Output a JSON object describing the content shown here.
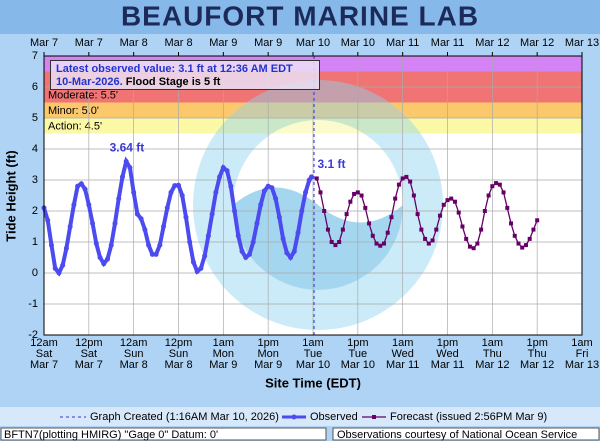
{
  "chart_data": {
    "type": "line",
    "title": "BEAUFORT MARINE LAB",
    "ylabel": "Tide Height (ft)",
    "xlabel": "Site Time (EDT)",
    "xlim": [
      0,
      144
    ],
    "ylim": [
      -2,
      7
    ],
    "yticks": [
      -2,
      -1,
      0,
      1,
      2,
      3,
      4,
      5,
      6,
      7
    ],
    "grid": true,
    "xticks": [
      {
        "value": 0,
        "label": "12am\nSat\nMar 7"
      },
      {
        "value": 12,
        "label": "12pm\nSat\nMar 7"
      },
      {
        "value": 24,
        "label": "12am\nSun\nMar 8"
      },
      {
        "value": 36,
        "label": "12pm\nSun\nMar 8"
      },
      {
        "value": 48,
        "label": "1am\nMon\nMar 9"
      },
      {
        "value": 60,
        "label": "1pm\nMon\nMar 9"
      },
      {
        "value": 72,
        "label": "1am\nTue\nMar 10"
      },
      {
        "value": 84,
        "label": "1pm\nTue\nMar 10"
      },
      {
        "value": 96,
        "label": "1am\nWed\nMar 11"
      },
      {
        "value": 108,
        "label": "1pm\nWed\nMar 11"
      },
      {
        "value": 120,
        "label": "1am\nThu\nMar 12"
      },
      {
        "value": 132,
        "label": "1pm\nThu\nMar 12"
      },
      {
        "value": 144,
        "label": "1am\nFri\nMar 13"
      }
    ],
    "x2ticks": [
      {
        "value": 0,
        "label": "Mar 7"
      },
      {
        "value": 12,
        "label": "Mar 7"
      },
      {
        "value": 24,
        "label": "Mar 8"
      },
      {
        "value": 36,
        "label": "Mar 8"
      },
      {
        "value": 48,
        "label": "Mar 9"
      },
      {
        "value": 60,
        "label": "Mar 9"
      },
      {
        "value": 72,
        "label": "Mar 10"
      },
      {
        "value": 84,
        "label": "Mar 10"
      },
      {
        "value": 96,
        "label": "Mar 11"
      },
      {
        "value": 108,
        "label": "Mar 11"
      },
      {
        "value": 120,
        "label": "Mar 12"
      },
      {
        "value": 132,
        "label": "Mar 12"
      },
      {
        "value": 144,
        "label": "Mar 13"
      }
    ],
    "flood_levels": [
      {
        "value": 4.5,
        "label": "Action: 4.5'",
        "color": "#fbf8a6"
      },
      {
        "value": 5,
        "label": "Minor: 5.0'",
        "color": "#fcc86c"
      },
      {
        "value": 5.5,
        "label": "Moderate: 5.5'",
        "color": "#f07474"
      },
      {
        "value": 6.5,
        "color": "#d383f4"
      }
    ],
    "latest_lines": [
      "Latest observed value: 3.1 ft at 12:36 AM EDT",
      "10-Mar-2026."
    ],
    "flood_stage_text": "Flood Stage is 5 ft",
    "annotations": [
      {
        "text": "3.64 ft",
        "x": 22.2,
        "y": 3.64,
        "color": "#3b3bd6"
      },
      {
        "text": "3.1 ft",
        "x": 71.6,
        "y": 3.1,
        "color": "#3b3bd6"
      }
    ],
    "created": {
      "name": "Graph Created (1:16AM Mar 10, 2026)",
      "x": 72.27,
      "color": "#3333cc"
    },
    "series": [
      {
        "name": "Observed",
        "color": "#4b4bf0",
        "marker": "circle",
        "x": [
          0,
          1,
          2,
          3,
          4,
          5,
          6,
          7,
          8,
          9,
          10,
          11,
          12,
          13,
          14,
          15,
          16,
          17,
          18,
          19,
          20,
          21,
          22,
          23,
          24,
          25,
          26,
          27,
          28,
          29,
          30,
          31,
          32,
          33,
          34,
          35,
          36,
          37,
          38,
          39,
          40,
          41,
          42,
          43,
          44,
          45,
          46,
          47,
          48,
          49,
          50,
          51,
          52,
          53,
          54,
          55,
          56,
          57,
          58,
          59,
          60,
          61,
          62,
          63,
          64,
          65,
          66,
          67,
          68,
          69,
          70,
          71,
          71.6
        ],
        "values": [
          2.1,
          1.7,
          0.9,
          0.15,
          0.0,
          0.25,
          0.8,
          1.5,
          2.2,
          2.8,
          2.88,
          2.7,
          2.2,
          1.6,
          0.95,
          0.5,
          0.3,
          0.45,
          0.9,
          1.6,
          2.4,
          3.1,
          3.6,
          3.4,
          2.6,
          1.9,
          1.75,
          1.4,
          0.9,
          0.6,
          0.6,
          0.9,
          1.5,
          2.1,
          2.6,
          2.82,
          2.83,
          2.5,
          1.8,
          1.0,
          0.35,
          0.05,
          0.15,
          0.55,
          1.2,
          1.9,
          2.6,
          3.1,
          3.4,
          3.3,
          2.8,
          2.0,
          1.2,
          0.7,
          0.5,
          0.6,
          1.0,
          1.6,
          2.2,
          2.65,
          2.8,
          2.75,
          2.4,
          1.8,
          1.1,
          0.65,
          0.5,
          0.7,
          1.3,
          2.0,
          2.6,
          3.0,
          3.1
        ]
      },
      {
        "name": "Forecast (issued 2:56PM Mar 9)",
        "color": "#660066",
        "marker": "square",
        "x": [
          73,
          74,
          75,
          76,
          77,
          78,
          79,
          80,
          81,
          82,
          83,
          84,
          85,
          86,
          87,
          88,
          89,
          90,
          91,
          92,
          93,
          94,
          95,
          96,
          97,
          98,
          99,
          100,
          101,
          102,
          103,
          104,
          105,
          106,
          107,
          108,
          109,
          110,
          111,
          112,
          113,
          114,
          115,
          116,
          117,
          118,
          119,
          120,
          121,
          122,
          123,
          124,
          125,
          126,
          127,
          128,
          129,
          130,
          131,
          132
        ],
        "values": [
          3.05,
          2.6,
          2.0,
          1.4,
          1.0,
          0.9,
          1.0,
          1.4,
          1.9,
          2.3,
          2.55,
          2.6,
          2.5,
          2.1,
          1.6,
          1.2,
          0.95,
          0.88,
          0.95,
          1.3,
          1.8,
          2.4,
          2.85,
          3.05,
          3.1,
          2.95,
          2.5,
          1.9,
          1.4,
          1.1,
          0.95,
          1.05,
          1.4,
          1.85,
          2.2,
          2.35,
          2.4,
          2.3,
          1.95,
          1.5,
          1.1,
          0.85,
          0.8,
          0.95,
          1.4,
          2.0,
          2.5,
          2.8,
          2.9,
          2.85,
          2.6,
          2.1,
          1.6,
          1.2,
          0.95,
          0.82,
          0.9,
          1.1,
          1.4,
          1.7
        ]
      }
    ]
  },
  "footer_left": "BFTN7(plotting HMIRG) \"Gage 0\" Datum: 0'",
  "footer_right": "Observations courtesy of National Ocean Service"
}
